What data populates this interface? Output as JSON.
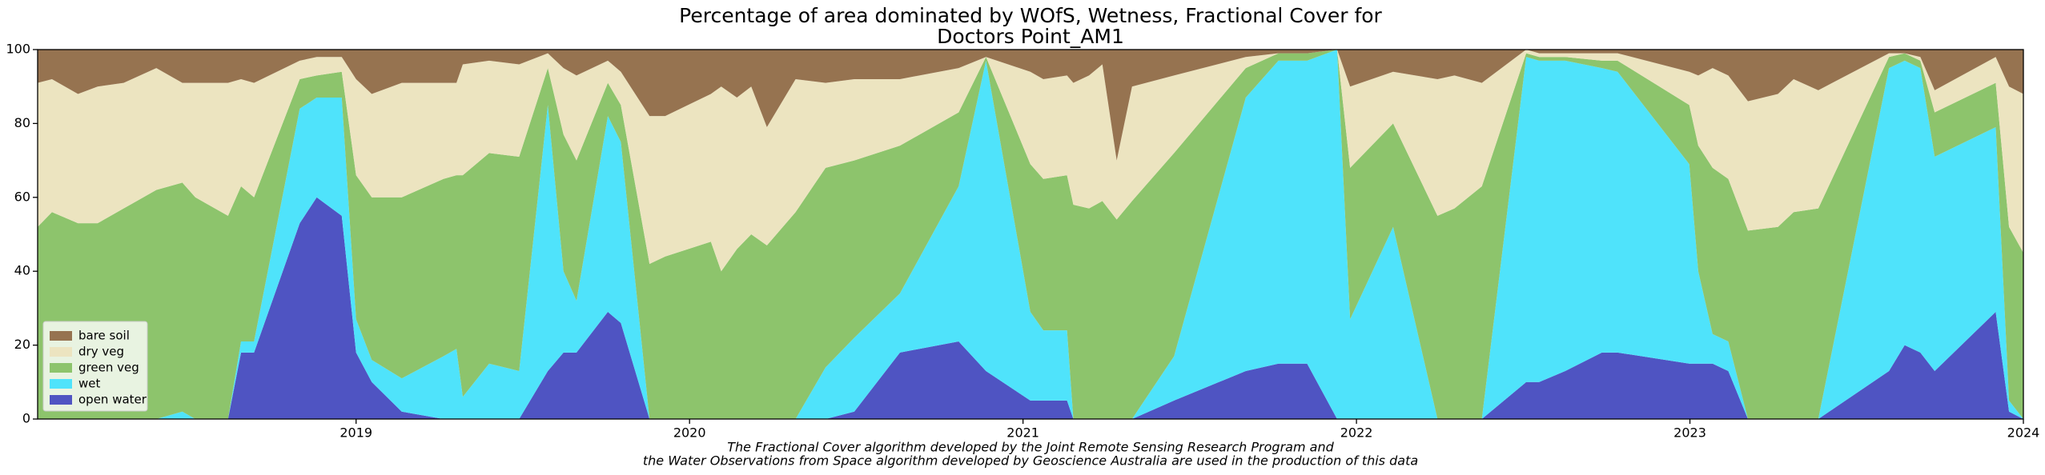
{
  "chart_data": {
    "type": "stacked_area",
    "title": [
      "Percentage of area dominated by WOfS, Wetness, Fractional Cover for",
      "Doctors Point_AM1"
    ],
    "annotations": [
      "The Fractional Cover algorithm developed by the Joint Remote Sensing Research Program and",
      "the Water Observations from Space algorithm developed by Geoscience Australia are used in the production of this data"
    ],
    "x": [
      2018.045,
      2018.088,
      2018.166,
      2018.225,
      2018.303,
      2018.401,
      2018.479,
      2018.518,
      2018.616,
      2018.655,
      2018.694,
      2018.831,
      2018.882,
      2018.957,
      2019.0,
      2019.047,
      2019.137,
      2019.262,
      2019.301,
      2019.32,
      2019.399,
      2019.489,
      2019.575,
      2019.622,
      2019.661,
      2019.755,
      2019.794,
      2019.88,
      2019.927,
      2020.064,
      2020.095,
      2020.142,
      2020.185,
      2020.232,
      2020.318,
      2020.408,
      2020.494,
      2020.631,
      2020.807,
      2020.889,
      2021.022,
      2021.061,
      2021.132,
      2021.151,
      2021.198,
      2021.238,
      2021.281,
      2021.327,
      2021.453,
      2021.668,
      2021.766,
      2021.852,
      2021.942,
      2021.981,
      2022.11,
      2022.243,
      2022.294,
      2022.376,
      2022.509,
      2022.548,
      2022.626,
      2022.736,
      2022.783,
      2022.998,
      2023.025,
      2023.068,
      2023.115,
      2023.174,
      2023.264,
      2023.311,
      2023.385,
      2023.597,
      2023.644,
      2023.691,
      2023.734,
      2023.917,
      2023.957,
      2024.0
    ],
    "series": [
      {
        "name": "open water",
        "color": "#4f54c2",
        "values": [
          0,
          0,
          0,
          0,
          0,
          0,
          0,
          0,
          0,
          18,
          18,
          53,
          60,
          55,
          18,
          10,
          2,
          0,
          0,
          0,
          0,
          0,
          13,
          18,
          18,
          29,
          26,
          0,
          0,
          0,
          0,
          0,
          0,
          0,
          0,
          0,
          2,
          18,
          21,
          13,
          5,
          5,
          5,
          0,
          0,
          0,
          0,
          0,
          5,
          13,
          15,
          15,
          0,
          0,
          0,
          0,
          0,
          0,
          10,
          10,
          13,
          18,
          18,
          15,
          15,
          15,
          13,
          0,
          0,
          0,
          0,
          13,
          20,
          18,
          13,
          29,
          2,
          0
        ]
      },
      {
        "name": "wet",
        "color": "#4fe3fb",
        "values": [
          0,
          0,
          0,
          0,
          0,
          0,
          2,
          0,
          0,
          3,
          3,
          31,
          27,
          32,
          9,
          6,
          9,
          17,
          19,
          6,
          15,
          13,
          72,
          22,
          14,
          53,
          49,
          0,
          0,
          0,
          0,
          0,
          0,
          0,
          0,
          14,
          20,
          16,
          42,
          84,
          24,
          19,
          19,
          0,
          0,
          0,
          0,
          0,
          12,
          74,
          82,
          82,
          100,
          27,
          52,
          0,
          0,
          0,
          88,
          87,
          84,
          77,
          76,
          54,
          25,
          8,
          8,
          0,
          0,
          0,
          0,
          82,
          77,
          77,
          58,
          50,
          3,
          0
        ]
      },
      {
        "name": "green veg",
        "color": "#8dc46c",
        "values": [
          52,
          56,
          53,
          53,
          57,
          62,
          62,
          60,
          55,
          42,
          39,
          8,
          6,
          7,
          39,
          44,
          49,
          48,
          47,
          60,
          57,
          58,
          10,
          37,
          38,
          9,
          10,
          42,
          44,
          48,
          40,
          46,
          50,
          47,
          56,
          54,
          48,
          40,
          20,
          1,
          40,
          41,
          42,
          58,
          57,
          59,
          54,
          59,
          55,
          8,
          2,
          2,
          0,
          41,
          28,
          55,
          57,
          63,
          1,
          1,
          1,
          2,
          3,
          16,
          34,
          45,
          44,
          51,
          52,
          56,
          57,
          3,
          2,
          2,
          12,
          12,
          47,
          45
        ]
      },
      {
        "name": "dry veg",
        "color": "#ece4c0",
        "values": [
          39,
          36,
          35,
          37,
          34,
          33,
          27,
          31,
          36,
          29,
          31,
          5,
          5,
          4,
          26,
          28,
          31,
          26,
          25,
          30,
          25,
          25,
          4,
          18,
          23,
          6,
          9,
          40,
          38,
          40,
          50,
          41,
          40,
          32,
          36,
          23,
          22,
          18,
          12,
          0,
          25,
          27,
          27,
          33,
          36,
          37,
          16,
          31,
          21,
          3,
          0,
          0,
          0,
          22,
          14,
          37,
          36,
          28,
          1,
          1,
          1,
          2,
          2,
          9,
          19,
          27,
          28,
          35,
          36,
          36,
          32,
          1,
          0,
          1,
          6,
          7,
          38,
          43
        ]
      },
      {
        "name": "bare soil",
        "color": "#967350",
        "values": [
          9,
          8,
          12,
          10,
          9,
          5,
          9,
          9,
          9,
          8,
          9,
          3,
          2,
          2,
          8,
          12,
          9,
          9,
          9,
          4,
          3,
          4,
          1,
          5,
          7,
          3,
          6,
          18,
          18,
          12,
          10,
          13,
          10,
          21,
          8,
          9,
          8,
          8,
          5,
          2,
          6,
          8,
          7,
          9,
          7,
          4,
          30,
          10,
          7,
          2,
          1,
          1,
          0,
          10,
          6,
          8,
          7,
          9,
          0,
          1,
          1,
          1,
          1,
          6,
          7,
          5,
          7,
          14,
          12,
          8,
          11,
          1,
          1,
          2,
          11,
          2,
          10,
          12
        ]
      }
    ],
    "xlim": [
      2018.045,
      2024.0
    ],
    "xticks": [
      2019,
      2020,
      2021,
      2022,
      2023,
      2024
    ],
    "ylim": [
      0,
      100
    ],
    "yticks": [
      0,
      20,
      40,
      60,
      80,
      100
    ],
    "grid": false,
    "legend": "lower left"
  }
}
